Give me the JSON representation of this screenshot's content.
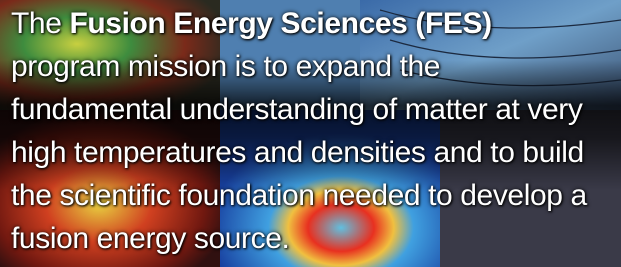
{
  "banner": {
    "lead": "The",
    "emphasis": "Fusion Energy Sciences (FES)",
    "lines": [
      "program mission is to expand the",
      "fundamental understanding of matter at very",
      "high temperatures and densities and to build",
      "the scientific foundation needed to develop a",
      "fusion energy source."
    ]
  }
}
